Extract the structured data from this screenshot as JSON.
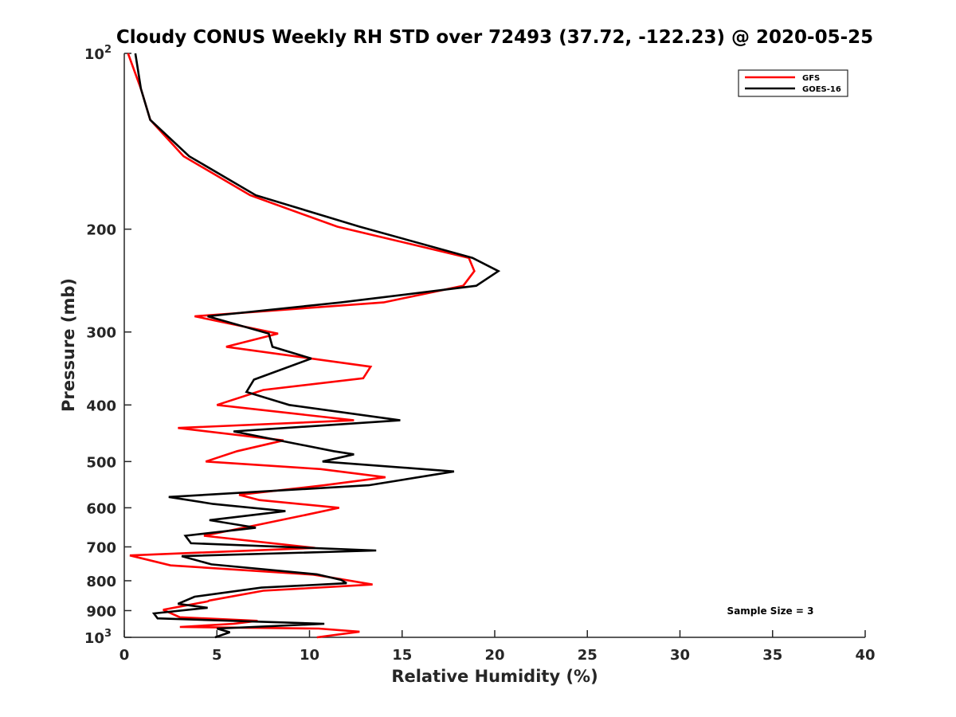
{
  "chart_data": {
    "type": "line",
    "title": "Cloudy CONUS Weekly RH STD over 72493 (37.72, -122.23) @ 2020-05-25",
    "xlabel": "Relative Humidity (%)",
    "ylabel": "Pressure (mb)",
    "xlim": [
      0,
      40
    ],
    "ylim": [
      100,
      1000
    ],
    "y_scale": "log",
    "y_reversed": true,
    "x_ticks": [
      0,
      5,
      10,
      15,
      20,
      25,
      30,
      35,
      40
    ],
    "y_ticks": [
      {
        "value": 100,
        "label": "10",
        "sup": "2"
      },
      {
        "value": 200,
        "label": "200",
        "sup": ""
      },
      {
        "value": 300,
        "label": "300",
        "sup": ""
      },
      {
        "value": 400,
        "label": "400",
        "sup": ""
      },
      {
        "value": 500,
        "label": "500",
        "sup": ""
      },
      {
        "value": 600,
        "label": "600",
        "sup": ""
      },
      {
        "value": 700,
        "label": "700",
        "sup": ""
      },
      {
        "value": 800,
        "label": "800",
        "sup": ""
      },
      {
        "value": 900,
        "label": "900",
        "sup": ""
      },
      {
        "value": 1000,
        "label": "10",
        "sup": "3"
      }
    ],
    "legend_position": "top-right",
    "annotation": "Sample Size = 3",
    "series": [
      {
        "name": "GFS",
        "color": "#ff0000",
        "points": [
          [
            0.2,
            100
          ],
          [
            0.9,
            115
          ],
          [
            1.4,
            130
          ],
          [
            3.2,
            150
          ],
          [
            6.8,
            175
          ],
          [
            11.5,
            198
          ],
          [
            18.6,
            224
          ],
          [
            18.9,
            236
          ],
          [
            18.3,
            250
          ],
          [
            14.0,
            267
          ],
          [
            3.8,
            282
          ],
          [
            8.3,
            302
          ],
          [
            5.5,
            318
          ],
          [
            13.3,
            344
          ],
          [
            12.9,
            360
          ],
          [
            7.5,
            377
          ],
          [
            5.0,
            400
          ],
          [
            12.4,
            425
          ],
          [
            2.9,
            438
          ],
          [
            8.6,
            460
          ],
          [
            6.1,
            480
          ],
          [
            4.4,
            500
          ],
          [
            10.6,
            515
          ],
          [
            14.1,
            532
          ],
          [
            10.8,
            549
          ],
          [
            6.2,
            570
          ],
          [
            7.3,
            582
          ],
          [
            11.6,
            600
          ],
          [
            9.8,
            617
          ],
          [
            7.3,
            641
          ],
          [
            4.3,
            670
          ],
          [
            10.3,
            703
          ],
          [
            0.3,
            724
          ],
          [
            2.5,
            753
          ],
          [
            10.2,
            781
          ],
          [
            11.2,
            790
          ],
          [
            13.4,
            812
          ],
          [
            7.5,
            832
          ],
          [
            4.6,
            865
          ],
          [
            4.5,
            868
          ],
          [
            2.1,
            897
          ],
          [
            3.0,
            924
          ],
          [
            7.2,
            937
          ],
          [
            5.9,
            948
          ],
          [
            3.0,
            960
          ],
          [
            10.5,
            966
          ],
          [
            12.7,
            978
          ],
          [
            10.4,
            1000
          ]
        ]
      },
      {
        "name": "GOES-16",
        "color": "#000000",
        "points": [
          [
            0.6,
            100
          ],
          [
            0.9,
            115
          ],
          [
            1.4,
            130
          ],
          [
            3.5,
            150
          ],
          [
            7.1,
            175
          ],
          [
            12.7,
            198
          ],
          [
            18.8,
            224
          ],
          [
            20.2,
            236
          ],
          [
            19.0,
            250
          ],
          [
            11.7,
            267
          ],
          [
            4.5,
            282
          ],
          [
            7.8,
            302
          ],
          [
            8.0,
            318
          ],
          [
            10.1,
            333
          ],
          [
            7.0,
            362
          ],
          [
            6.6,
            380
          ],
          [
            8.9,
            400
          ],
          [
            14.9,
            425
          ],
          [
            5.9,
            444
          ],
          [
            11.3,
            480
          ],
          [
            12.4,
            486
          ],
          [
            10.7,
            500
          ],
          [
            17.8,
            520
          ],
          [
            13.2,
            549
          ],
          [
            2.4,
            575
          ],
          [
            4.8,
            591
          ],
          [
            8.7,
            608
          ],
          [
            4.6,
            630
          ],
          [
            7.1,
            649
          ],
          [
            3.3,
            670
          ],
          [
            3.6,
            690
          ],
          [
            13.6,
            710
          ],
          [
            3.1,
            726
          ],
          [
            4.7,
            750
          ],
          [
            10.4,
            780
          ],
          [
            11.7,
            797
          ],
          [
            12.0,
            808
          ],
          [
            7.4,
            822
          ],
          [
            3.8,
            852
          ],
          [
            2.9,
            876
          ],
          [
            4.5,
            890
          ],
          [
            1.6,
            910
          ],
          [
            1.8,
            928
          ],
          [
            10.8,
            948
          ],
          [
            5.0,
            966
          ],
          [
            5.7,
            980
          ],
          [
            4.9,
            1000
          ]
        ]
      }
    ]
  }
}
